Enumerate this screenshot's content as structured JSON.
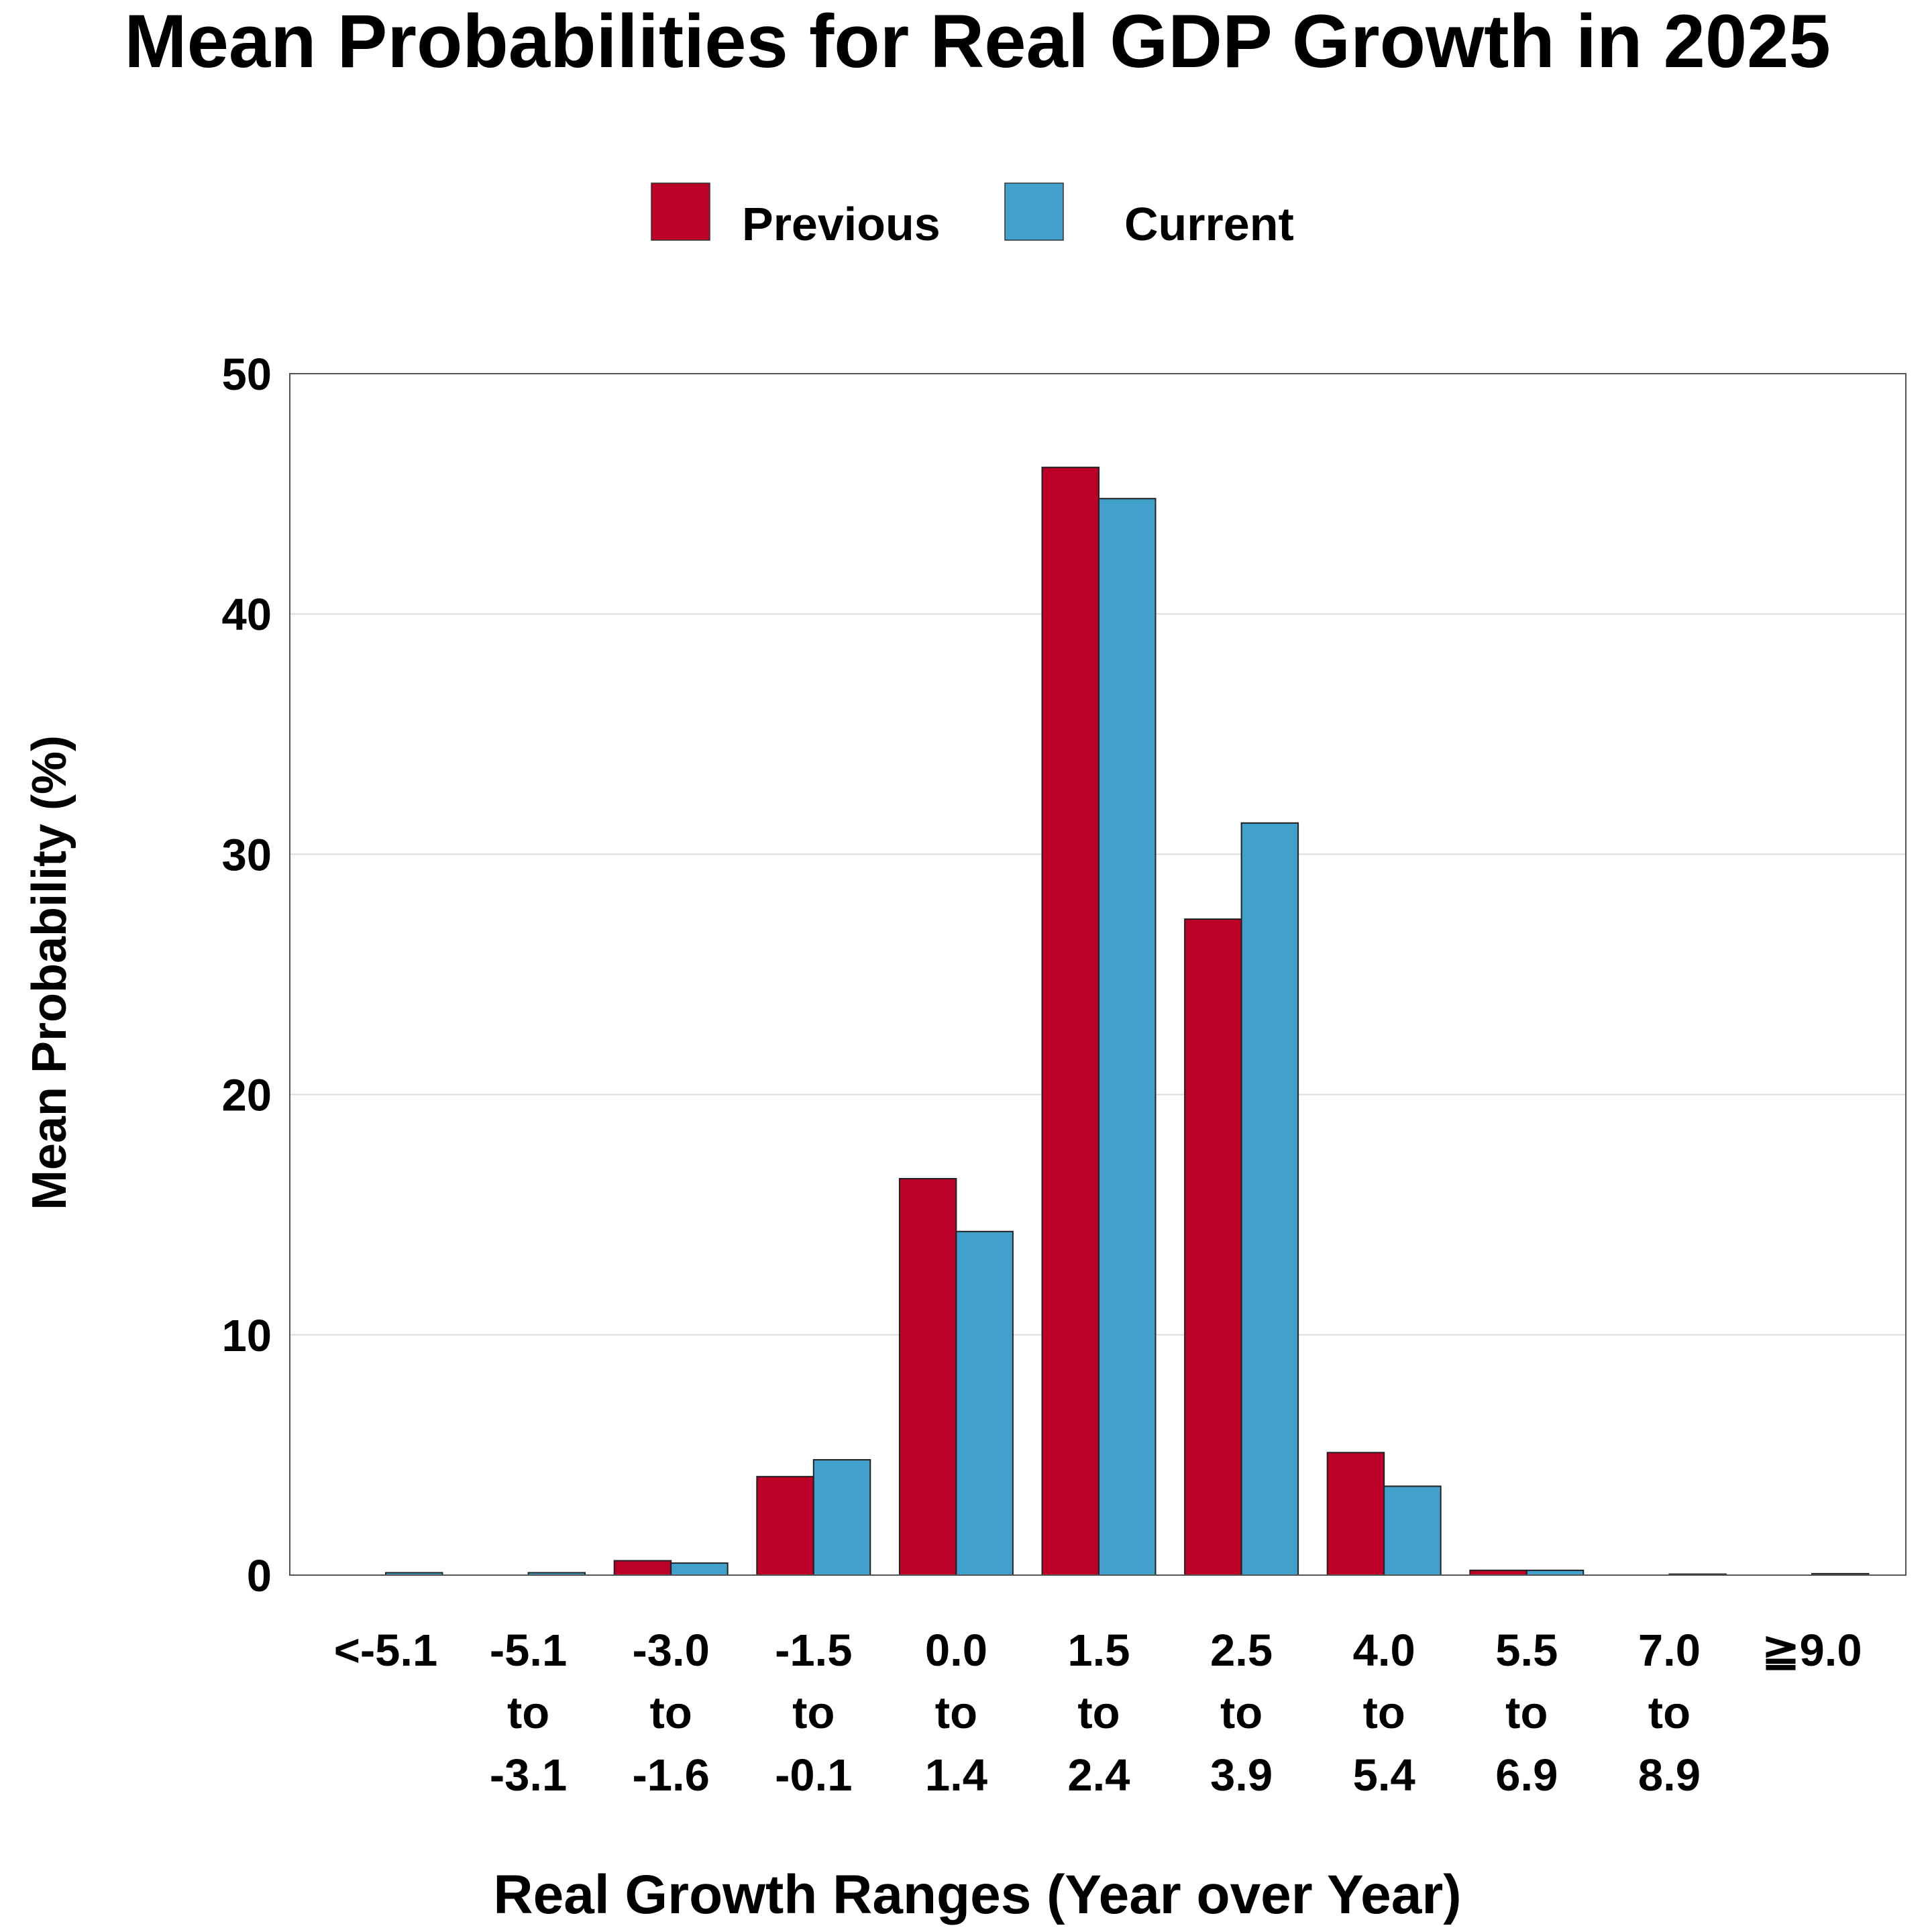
{
  "chart_data": {
    "type": "bar",
    "title": "Mean Probabilities for Real GDP Growth in 2025",
    "xlabel": "Real Growth Ranges (Year over Year)",
    "ylabel": "Mean Probability (%)",
    "ylim": [
      0,
      50
    ],
    "yticks": [
      "0",
      "10",
      "20",
      "30",
      "40",
      "50"
    ],
    "grid": "horizontal",
    "legend_position": "top-center",
    "categories": [
      [
        "<-5.1"
      ],
      [
        "-5.1",
        "to",
        "-3.1"
      ],
      [
        "-3.0",
        "to",
        "-1.6"
      ],
      [
        "-1.5",
        "to",
        "-0.1"
      ],
      [
        "0.0",
        "to",
        "1.4"
      ],
      [
        "1.5",
        "to",
        "2.4"
      ],
      [
        "2.5",
        "to",
        "3.9"
      ],
      [
        "4.0",
        "to",
        "5.4"
      ],
      [
        "5.5",
        "to",
        "6.9"
      ],
      [
        "7.0",
        "to",
        "8.9"
      ],
      [
        "≧9.0"
      ]
    ],
    "series": [
      {
        "name": "Previous",
        "color": "#BC0027",
        "values": [
          0,
          0,
          0.6,
          4.1,
          16.5,
          46.1,
          27.3,
          5.1,
          0.2,
          0,
          0
        ]
      },
      {
        "name": "Current",
        "color": "#42A1CB",
        "values": [
          0.1,
          0.1,
          0.5,
          4.8,
          14.3,
          44.8,
          31.3,
          3.7,
          0.2,
          0.04,
          0.06
        ]
      }
    ]
  }
}
